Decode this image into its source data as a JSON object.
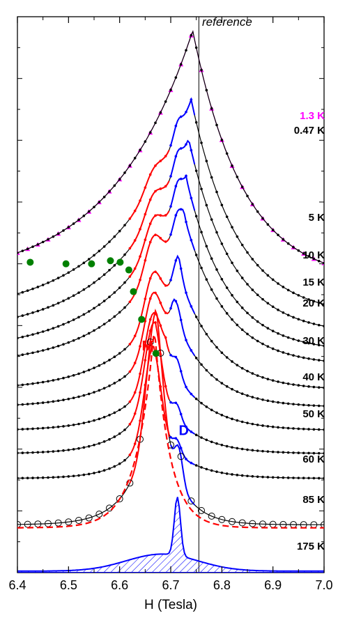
{
  "chart_data": {
    "type": "line",
    "title": "",
    "xlabel": "H (Tesla)",
    "ylabel": "",
    "xlim": [
      6.4,
      7.0
    ],
    "x_ticks": [
      "6.4",
      "6.5",
      "6.6",
      "6.7",
      "6.8",
      "6.9",
      "7.0"
    ],
    "y_ticks_labeled": false,
    "reference_field": 6.755,
    "reference_label": "reference",
    "colors": {
      "black": "#000000",
      "magenta": "#ff00ff",
      "red": "#ff0000",
      "blue": "#0000ff",
      "green": "#008000"
    },
    "series": [
      {
        "name": "1.3 K",
        "color": "#ff00ff",
        "baseline": 9.4,
        "height": 8.15,
        "peak_x": 6.743,
        "w_left": 0.16,
        "w_right": 0.1,
        "offset": 0.4,
        "m_amp": 0,
        "d_amp": 0
      },
      {
        "name": "0.47 K",
        "color": "#000000",
        "baseline": 9.4,
        "height": 8.15,
        "peak_x": 6.743,
        "w_left": 0.16,
        "w_right": 0.1,
        "offset": 0.4,
        "m_amp": 0,
        "d_amp": 0
      },
      {
        "name": "5 K",
        "color": "#000000",
        "baseline": 8.3,
        "height": 7.45,
        "peak_x": 6.74,
        "w_left": 0.15,
        "w_right": 0.09,
        "offset": 0.9,
        "m_amp": 0.5,
        "d_amp": 0.45
      },
      {
        "name": "10 K",
        "color": "#000000",
        "baseline": 7.7,
        "height": 6.9,
        "peak_x": 6.735,
        "w_left": 0.14,
        "w_right": 0.085,
        "offset": 1.0,
        "m_amp": 0.7,
        "d_amp": 0.5
      },
      {
        "name": "15 K",
        "color": "#000000",
        "baseline": 7.15,
        "height": 6.3,
        "peak_x": 6.73,
        "w_left": 0.13,
        "w_right": 0.08,
        "offset": 1.0,
        "m_amp": 0.9,
        "d_amp": 0.55
      },
      {
        "name": "20 K",
        "color": "#000000",
        "baseline": 6.7,
        "height": 5.7,
        "peak_x": 6.725,
        "w_left": 0.12,
        "w_right": 0.08,
        "offset": 1.1,
        "m_amp": 1.2,
        "d_amp": 0.55
      },
      {
        "name": "30 K",
        "color": "#000000",
        "baseline": 5.9,
        "height": 4.6,
        "peak_x": 6.715,
        "w_left": 0.1,
        "w_right": 0.075,
        "offset": 1.1,
        "m_amp": 1.5,
        "d_amp": 0.6
      },
      {
        "name": "40 K",
        "color": "#000000",
        "baseline": 5.35,
        "height": 3.85,
        "peak_x": 6.705,
        "w_left": 0.085,
        "w_right": 0.07,
        "offset": 1.2,
        "m_amp": 1.8,
        "d_amp": 0.6
      },
      {
        "name": "50 K",
        "color": "#000000",
        "baseline": 4.6,
        "height": 3.2,
        "peak_x": 6.69,
        "w_left": 0.07,
        "w_right": 0.07,
        "offset": 1.2,
        "m_amp": 2.1,
        "d_amp": 0.55
      },
      {
        "name": "60 K",
        "color": "#000000",
        "baseline": 3.85,
        "height": 2.85,
        "peak_x": 6.67,
        "w_left": 0.06,
        "w_right": 0.065,
        "offset": 1.2,
        "m_amp": 2.3,
        "d_amp": 0.5
      },
      {
        "name": "85 K",
        "color": "#000000",
        "baseline": 3.05,
        "height": 2.5,
        "peak_x": 6.665,
        "w_left": 0.05,
        "w_right": 0.06,
        "offset": 1.2,
        "m_amp": 2.6,
        "d_amp": 0.45
      },
      {
        "name": "175 K",
        "color": "#000000",
        "baseline": 1.55,
        "height": 6.4,
        "peak_x": 6.672,
        "w_left": 0.045,
        "w_right": 0.04,
        "offset": 0.35,
        "m_amp": 3.0,
        "d_amp": 1.1
      }
    ],
    "green_markers": [
      {
        "x": 6.425,
        "y": 10.05
      },
      {
        "x": 6.495,
        "y": 10.0
      },
      {
        "x": 6.545,
        "y": 10.0
      },
      {
        "x": 6.582,
        "y": 10.1
      },
      {
        "x": 6.601,
        "y": 10.05
      },
      {
        "x": 6.618,
        "y": 9.8
      },
      {
        "x": 6.627,
        "y": 9.1
      },
      {
        "x": 6.643,
        "y": 8.2
      },
      {
        "x": 6.671,
        "y": 7.1
      }
    ],
    "components": {
      "M_label": "M",
      "D_label": "D",
      "M_peak_x": 6.668,
      "D_peak_x": 6.713
    }
  }
}
